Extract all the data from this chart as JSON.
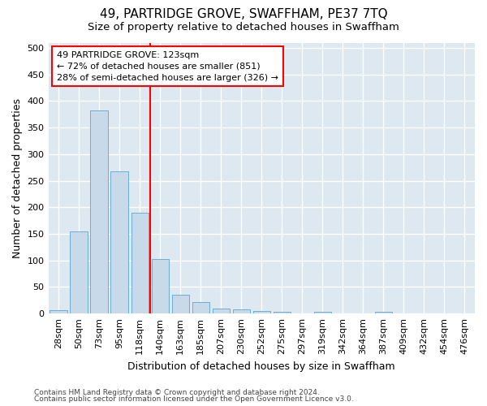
{
  "title": "49, PARTRIDGE GROVE, SWAFFHAM, PE37 7TQ",
  "subtitle": "Size of property relative to detached houses in Swaffham",
  "xlabel": "Distribution of detached houses by size in Swaffham",
  "ylabel": "Number of detached properties",
  "footer_line1": "Contains HM Land Registry data © Crown copyright and database right 2024.",
  "footer_line2": "Contains public sector information licensed under the Open Government Licence v3.0.",
  "bin_labels": [
    "28sqm",
    "50sqm",
    "73sqm",
    "95sqm",
    "118sqm",
    "140sqm",
    "163sqm",
    "185sqm",
    "207sqm",
    "230sqm",
    "252sqm",
    "275sqm",
    "297sqm",
    "319sqm",
    "342sqm",
    "364sqm",
    "387sqm",
    "409sqm",
    "432sqm",
    "454sqm",
    "476sqm"
  ],
  "bar_heights": [
    7,
    155,
    383,
    267,
    190,
    103,
    36,
    21,
    10,
    8,
    5,
    3,
    0,
    4,
    0,
    0,
    4,
    0,
    0,
    0,
    0
  ],
  "bar_color": "#c8daea",
  "bar_edge_color": "#6aaed6",
  "vline_x": 4.5,
  "vline_color": "red",
  "annotation_line1": "49 PARTRIDGE GROVE: 123sqm",
  "annotation_line2": "← 72% of detached houses are smaller (851)",
  "annotation_line3": "28% of semi-detached houses are larger (326) →",
  "annotation_box_color": "white",
  "annotation_box_edge": "red",
  "ylim": [
    0,
    510
  ],
  "yticks": [
    0,
    50,
    100,
    150,
    200,
    250,
    300,
    350,
    400,
    450,
    500
  ],
  "fig_bg_color": "#ffffff",
  "plot_bg_color": "#dde8f0",
  "grid_color": "#ffffff",
  "title_fontsize": 11,
  "subtitle_fontsize": 9.5,
  "axis_label_fontsize": 9,
  "tick_fontsize": 8,
  "annotation_fontsize": 8,
  "footer_fontsize": 6.5
}
